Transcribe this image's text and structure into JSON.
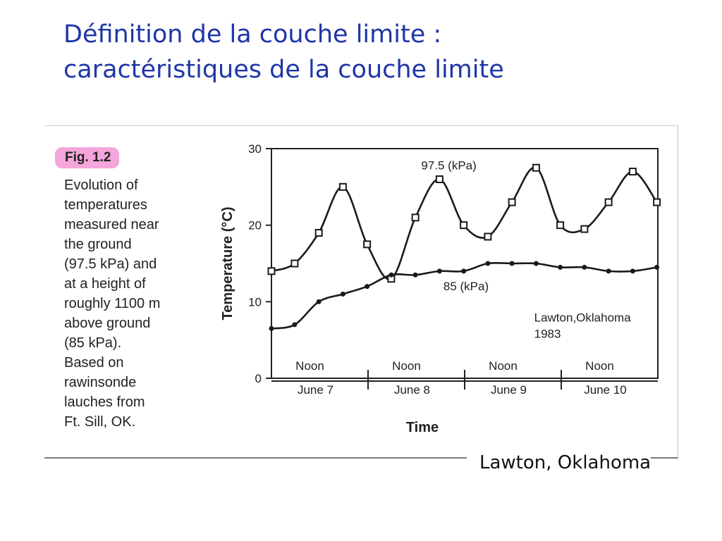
{
  "slide": {
    "title_lines": [
      "Définition de la couche limite :",
      "caractéristiques de la couche limite"
    ],
    "caption": "Lawton, Oklahoma"
  },
  "figure": {
    "label": "Fig.  1.2",
    "description_lines": [
      "Evolution of",
      "temperatures",
      "measured near",
      "the ground",
      "(97.5 kPa) and",
      "at a height of",
      "roughly 1100 m",
      "above ground",
      "(85 kPa).",
      "Based on",
      "rawinsonde",
      "lauches from",
      "Ft. Sill, OK."
    ]
  },
  "chart_data": {
    "type": "line",
    "title": "",
    "xlabel": "Time",
    "ylabel": "Temperature  (°C)",
    "ylim": [
      0,
      30
    ],
    "yticks": [
      0,
      10,
      20,
      30
    ],
    "xlim": [
      0,
      4
    ],
    "days": [
      "June 7",
      "June 8",
      "June 9",
      "June 10"
    ],
    "noon_label": "Noon",
    "noon_positions": [
      0.5,
      1.5,
      2.5,
      3.5
    ],
    "day_boundaries": [
      1,
      2,
      3
    ],
    "annotation": [
      "Lawton,Oklahoma",
      "1983"
    ],
    "series": [
      {
        "name": "97.5 (kPa)",
        "marker": "square",
        "x": [
          0.0,
          0.24,
          0.49,
          0.74,
          0.99,
          1.24,
          1.49,
          1.74,
          1.99,
          2.24,
          2.49,
          2.74,
          2.99,
          3.24,
          3.49,
          3.74,
          3.99
        ],
        "y": [
          14.0,
          15.0,
          19.0,
          25.0,
          17.5,
          13.0,
          21.0,
          26.0,
          20.0,
          18.5,
          23.0,
          27.5,
          20.0,
          19.5,
          23.0,
          27.0,
          23.0
        ]
      },
      {
        "name": "85 (kPa)",
        "marker": "dot",
        "x": [
          0.0,
          0.24,
          0.49,
          0.74,
          0.99,
          1.24,
          1.49,
          1.74,
          1.99,
          2.24,
          2.49,
          2.74,
          2.99,
          3.24,
          3.49,
          3.74,
          3.99
        ],
        "y": [
          6.5,
          7.0,
          10.0,
          11.0,
          12.0,
          13.5,
          13.5,
          14.0,
          14.0,
          15.0,
          15.0,
          15.0,
          14.5,
          14.5,
          14.0,
          14.0,
          14.5
        ]
      }
    ]
  }
}
